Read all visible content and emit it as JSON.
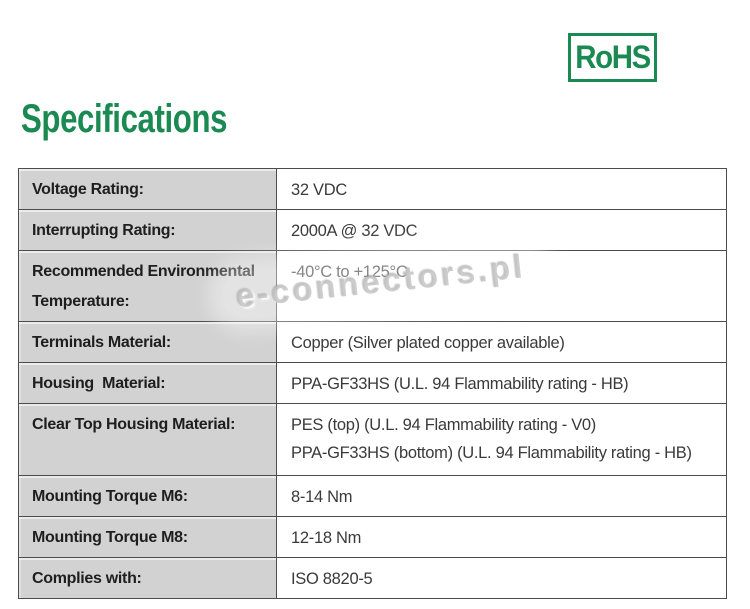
{
  "colors": {
    "green": "#1b8a52",
    "cell-gray": "#d2d2d2",
    "border": "#4c4c4c",
    "label-text": "#1e1e1e",
    "value-text": "#3a3a3a",
    "watermark-gray": "#bdbdbd"
  },
  "badge": {
    "label": "RoHS"
  },
  "title": "Specifications",
  "watermark": "e-connectors.pl",
  "table": {
    "rows": [
      {
        "label": "Voltage Rating:",
        "value": "32 VDC"
      },
      {
        "label": "Interrupting Rating:",
        "value": "2000A @ 32 VDC"
      },
      {
        "label": "Recommended Environmental Temperature:",
        "value": "-40°C to +125°C"
      },
      {
        "label": "Terminals Material:",
        "value": "Copper (Silver plated copper available)"
      },
      {
        "label": "Housing  Material:",
        "value": "PPA-GF33HS (U.L. 94 Flammability rating - HB)"
      },
      {
        "label": "Clear Top Housing Material:",
        "value": "PES (top) (U.L. 94 Flammability rating - V0)\nPPA-GF33HS (bottom) (U.L. 94 Flammability rating - HB)"
      },
      {
        "label": "Mounting Torque M6:",
        "value": "8-14 Nm"
      },
      {
        "label": "Mounting Torque M8:",
        "value": "12-18 Nm"
      },
      {
        "label": "Complies with:",
        "value": "ISO 8820-5"
      }
    ]
  }
}
